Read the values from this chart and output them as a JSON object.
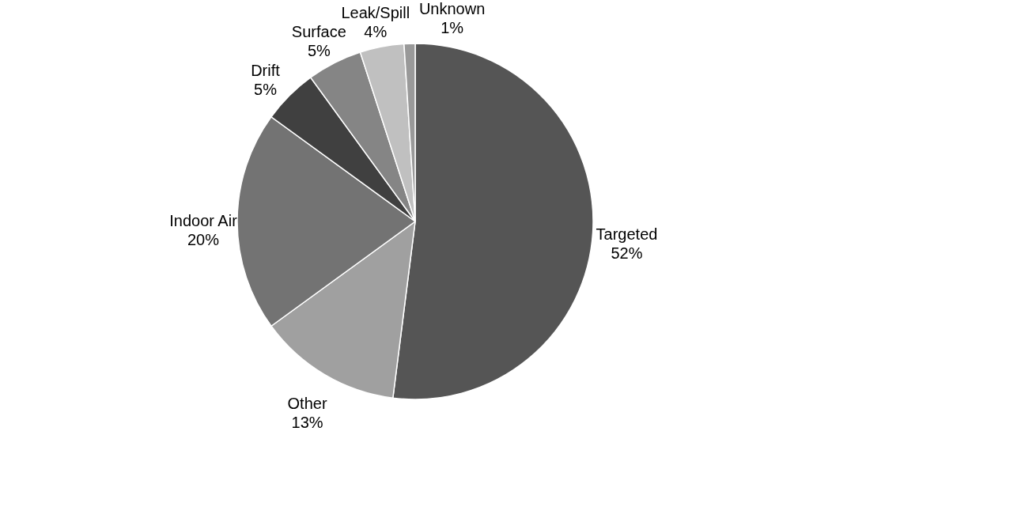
{
  "chart_data": {
    "type": "pie",
    "categories": [
      "Targeted",
      "Other",
      "Indoor Air",
      "Drift",
      "Surface",
      "Leak/Spill",
      "Unknown"
    ],
    "values": [
      52,
      13,
      20,
      5,
      5,
      4,
      1
    ],
    "value_labels": [
      "52%",
      "13%",
      "20%",
      "5%",
      "5%",
      "4%",
      "1%"
    ],
    "colors": [
      "#555555",
      "#a0a0a0",
      "#737373",
      "#404040",
      "#858585",
      "#c0c0c0",
      "#999999"
    ],
    "legend": false
  }
}
